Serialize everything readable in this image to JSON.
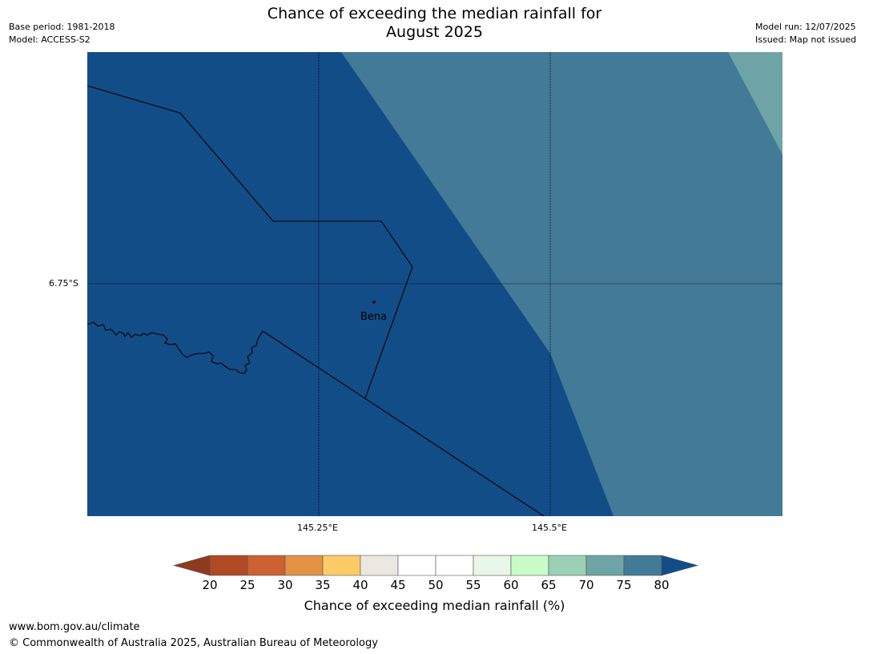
{
  "title_line1": "Chance of exceeding the median rainfall for",
  "title_line2": "August 2025",
  "meta": {
    "base_period": "Base period: 1981-2018",
    "model": "Model: ACCESS-S2",
    "model_run": "Model run: 12/07/2025",
    "issued": "Issued: Map not issued"
  },
  "map": {
    "lat_label": "6.75°S",
    "lon_labels": [
      "145.25°E",
      "145.5°E"
    ],
    "place_label": "Bena",
    "colors": {
      "band_80_plus": "#134d87",
      "band_75_80": "#427a97",
      "band_70_75": "#6ea4a6"
    }
  },
  "colorbar": {
    "ticks": [
      "20",
      "25",
      "30",
      "35",
      "40",
      "45",
      "50",
      "55",
      "60",
      "65",
      "70",
      "75",
      "80"
    ],
    "colors": [
      "#b04a25",
      "#cc6131",
      "#e29444",
      "#fdcb67",
      "#ede7e1",
      "#ffffff",
      "#ffffff",
      "#e8f7e7",
      "#c9fbc9",
      "#9bd0b7",
      "#6ea4a6",
      "#427a97"
    ],
    "low_extend_color": "#8e3a1e",
    "high_extend_color": "#134d87",
    "label": "Chance of exceeding median rainfall (%)"
  },
  "footer": {
    "url": "www.bom.gov.au/climate",
    "copyright": "© Commonwealth of Australia 2025, Australian Bureau of Meteorology"
  }
}
